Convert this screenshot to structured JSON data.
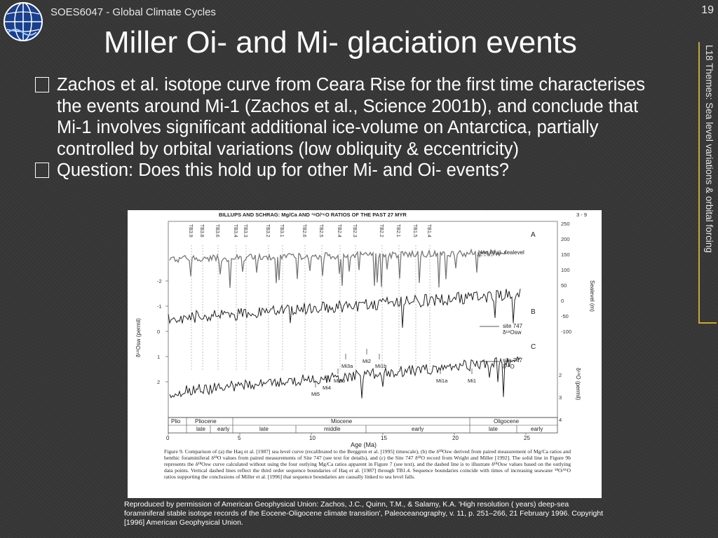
{
  "header": {
    "course": "SOES6047 - Global Climate Cycles",
    "slide_number": "19",
    "title": "Miller Oi- and Mi- glaciation events",
    "side_label": "L18 Themes: Sea level variations & orbital forcing"
  },
  "bullets": [
    "Zachos et al. isotope curve from Ceara Rise for the first time characterises the events around Mi-1 (Zachos et al., Science 2001b), and conclude that Mi-1 involves significant additional ice-volume on Antarctica, partially controlled by orbital variations (low obliquity & eccentricity)",
    "Question: Does this hold up for other Mi- and Oi- events?"
  ],
  "figure": {
    "header": "BILLUPS AND SCHRAG: Mg/Ca AND ¹⁸O/¹⁶O RATIOS OF THE PAST 27 MYR",
    "page_num": "3 - 9",
    "top_labels": [
      "TB3.9",
      "TB3.8",
      "TB3.6",
      "TB3.4",
      "TB3.3",
      "TB3.2",
      "TB3.1",
      "TB2.6",
      "TB2.5",
      "TB2.4",
      "TB2.3",
      "TB2.2",
      "TB2.1",
      "TB1.5",
      "TB1.4"
    ],
    "panel_a": "A",
    "panel_b": "B",
    "panel_c": "C",
    "haq_label": "Haq et al. sealevel",
    "site747_b_label": "site 747",
    "site747_b_sub": "δ¹⁸Osw",
    "site747_c_label": "site 747",
    "site747_c_sub": "δ¹⁸O",
    "right_axis_a_label": "Sealevel (m)",
    "right_axis_a_ticks": [
      "250",
      "200",
      "150",
      "100",
      "50",
      "0",
      "-50",
      "-100"
    ],
    "right_axis_c_label": "δ¹⁸O (permil)",
    "right_axis_c_ticks": [
      "2",
      "3",
      "4"
    ],
    "left_axis_label": "δ¹⁸Osw (permil)",
    "left_axis_ticks": [
      "-2",
      "-1",
      "0",
      "1",
      "2"
    ],
    "event_labels": [
      "Mi2",
      "Mi3a",
      "Mi1b",
      "Mi3b",
      "Mi4",
      "Mi1a",
      "Mi1",
      "Mi5"
    ],
    "epochs": [
      "Plio",
      "Pliocene",
      "Miocene",
      "Oligocene"
    ],
    "subepochs": [
      "late",
      "early",
      "late",
      "middle",
      "early",
      "late",
      "early"
    ],
    "x_ticks": [
      "0",
      "5",
      "10",
      "15",
      "20",
      "25"
    ],
    "x_label": "Age (Ma)",
    "figure_caption": "Figure 9. Comparison of (a) the Haq et al. [1987] sea level curve (recalibrated to the Berggren et al. [1995] timescale), (b) the δ¹⁸Osw derived from paired measurement of Mg/Ca ratios and benthic foraminiferal δ¹⁸O values from paired measurements of Site 747 (see text for details), and (c) the Site 747 δ¹⁸O record from Wright and Miller [1992]. The solid line in Figure 9b represents the δ¹⁸Osw curve calculated without using the four outlying Mg/Ca ratios apparent in Figure 7 (see text), and the dashed line is to illustrate δ¹⁸Osw values based on the outlying data points. Vertical dashed lines reflect the third order sequence boundaries of Haq et al. [1987] through TB1.4. Sequence boundaries coincide with times of increasing seawater ¹⁸O/¹⁶O ratios supporting the conclusions of Miller et al. [1996] that sequence boundaries are causally linked to sea level falls."
  },
  "caption": "Reproduced by permission of American Geophysical Union: Zachos, J.C., Quinn, T.M., & Salamy, K.A. 'High resolution ( years) deep-sea foraminiferal stable isotope records of the Eocene-Oligocene climate transition', Paleoceanography, v. 11, p. 251–266, 21 February 1996. Copyright [1996] American Geophysical Union."
}
